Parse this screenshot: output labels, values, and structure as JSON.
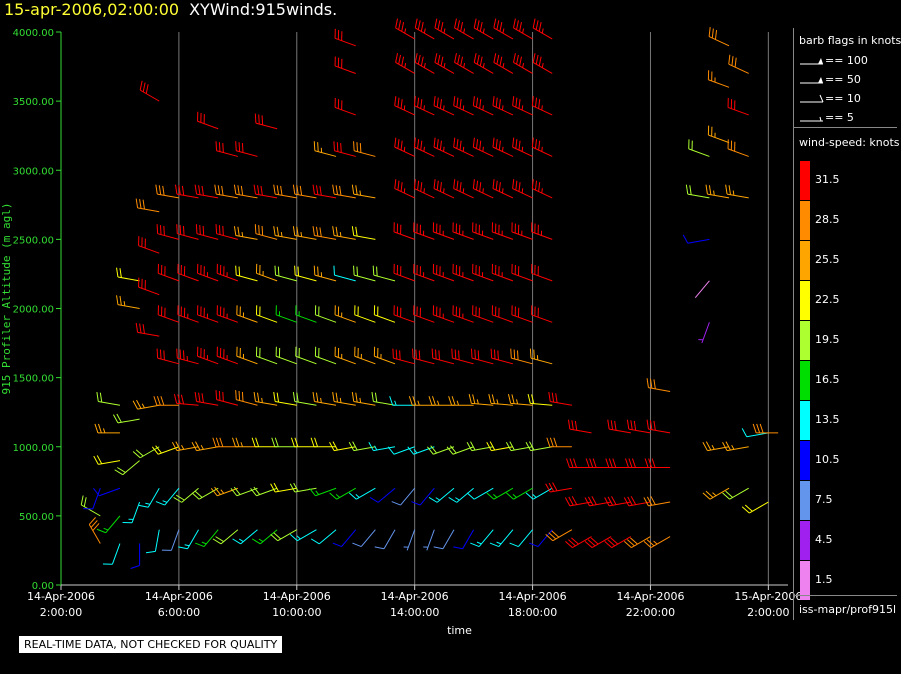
{
  "header": {
    "datetime": "15-apr-2006,02:00:00",
    "product": "XYWind:915winds."
  },
  "footer": {
    "qc_note": "REAL-TIME DATA, NOT CHECKED FOR QUALITY",
    "source": "iss-mapr/prof915l"
  },
  "legend": {
    "flags_title": "barb flags in knots",
    "flags": [
      {
        "kind": "pennant",
        "label": "== 100"
      },
      {
        "kind": "pennant",
        "label": "== 50"
      },
      {
        "kind": "full-barb",
        "label": "== 10"
      },
      {
        "kind": "half-barb",
        "label": "== 5"
      }
    ],
    "speed_title": "wind-speed: knots",
    "speed_bins": [
      {
        "label": "31.5",
        "color": "#ff0000"
      },
      {
        "label": "28.5",
        "color": "#ff8c00"
      },
      {
        "label": "25.5",
        "color": "#ffa500"
      },
      {
        "label": "22.5",
        "color": "#ffff00"
      },
      {
        "label": "19.5",
        "color": "#adff2f"
      },
      {
        "label": "16.5",
        "color": "#00dd00"
      },
      {
        "label": "13.5",
        "color": "#00ffff"
      },
      {
        "label": "10.5",
        "color": "#0000ff"
      },
      {
        "label": "7.5",
        "color": "#6495ed"
      },
      {
        "label": "4.5",
        "color": "#a020f0"
      },
      {
        "label": "1.5",
        "color": "#ee82ee"
      }
    ]
  },
  "chart_data": {
    "type": "scatter",
    "title": "XYWind:915winds.",
    "xlabel": "time",
    "ylabel": "915 Profiler Altitude (m agl)",
    "xlim": [
      "2006-04-14T02:00",
      "2006-04-15T02:40"
    ],
    "ylim": [
      0,
      4000
    ],
    "yticks": [
      "0.00",
      "500.00",
      "1000.00",
      "1500.00",
      "2000.00",
      "2500.00",
      "3000.00",
      "3500.00",
      "4000.00"
    ],
    "xticks": [
      {
        "date": "14-Apr-2006",
        "time": "2:00:00"
      },
      {
        "date": "14-Apr-2006",
        "time": "6:00:00"
      },
      {
        "date": "14-Apr-2006",
        "time": "10:00:00"
      },
      {
        "date": "14-Apr-2006",
        "time": "14:00:00"
      },
      {
        "date": "14-Apr-2006",
        "time": "18:00:00"
      },
      {
        "date": "14-Apr-2006",
        "time": "22:00:00"
      },
      {
        "date": "15-Apr-2006",
        "time": "2:00:00"
      }
    ],
    "grid": "vertical lines at each x tick",
    "columns": [
      {
        "time": "2006-04-14T03:20",
        "z": [
          300,
          500,
          700
        ],
        "speed": [
          28,
          20,
          10
        ],
        "dir": [
          330,
          300,
          200
        ]
      },
      {
        "time": "2006-04-14T04:00",
        "z": [
          300,
          500,
          700,
          900,
          1100,
          1300
        ],
        "speed": [
          12,
          16,
          10,
          22,
          24,
          20
        ],
        "dir": [
          200,
          220,
          250,
          260,
          270,
          280
        ]
      },
      {
        "time": "2006-04-14T04:40",
        "z": [
          300,
          600,
          900,
          1200,
          2000,
          2200
        ],
        "speed": [
          10,
          14,
          18,
          20,
          25,
          22
        ],
        "dir": [
          180,
          200,
          230,
          260,
          280,
          280
        ]
      },
      {
        "time": "2006-04-14T05:20",
        "z": [
          400,
          700,
          1000,
          1300,
          1800,
          2100,
          2400,
          2700,
          3500
        ],
        "speed": [
          12,
          14,
          20,
          25,
          30,
          31,
          30,
          29,
          31
        ],
        "dir": [
          190,
          210,
          240,
          260,
          280,
          290,
          290,
          280,
          300
        ]
      },
      {
        "time": "2006-04-14T06:00",
        "z": [
          400,
          700,
          1000,
          1300,
          1600,
          1900,
          2200,
          2500,
          2800
        ],
        "speed": [
          8,
          14,
          22,
          28,
          32,
          32,
          31,
          30,
          28
        ],
        "dir": [
          200,
          220,
          250,
          270,
          285,
          290,
          290,
          285,
          280
        ]
      },
      {
        "time": "2006-04-14T06:40",
        "z": [
          400,
          700,
          1000,
          1300,
          1600,
          1900,
          2200,
          2500,
          2800
        ],
        "speed": [
          14,
          18,
          24,
          30,
          33,
          33,
          32,
          31,
          30
        ],
        "dir": [
          210,
          230,
          260,
          275,
          285,
          290,
          290,
          285,
          280
        ]
      },
      {
        "time": "2006-04-14T07:20",
        "z": [
          400,
          700,
          1000,
          1300,
          1600,
          1900,
          2200,
          2500,
          2800,
          3300
        ],
        "speed": [
          16,
          20,
          26,
          30,
          33,
          34,
          33,
          32,
          31,
          30
        ],
        "dir": [
          220,
          240,
          260,
          280,
          290,
          290,
          290,
          285,
          280,
          290
        ]
      },
      {
        "time": "2006-04-14T08:00",
        "z": [
          400,
          700,
          1000,
          1300,
          1600,
          1900,
          2200,
          2500,
          2800,
          3100
        ],
        "speed": [
          18,
          24,
          28,
          32,
          34,
          35,
          33,
          30,
          28,
          30
        ],
        "dir": [
          230,
          250,
          270,
          285,
          290,
          290,
          290,
          285,
          280,
          285
        ]
      },
      {
        "time": "2006-04-14T08:40",
        "z": [
          400,
          700,
          1000,
          1300,
          1600,
          1900,
          2200,
          2500,
          2800,
          3100
        ],
        "speed": [
          14,
          20,
          24,
          28,
          26,
          24,
          22,
          26,
          28,
          30
        ],
        "dir": [
          230,
          250,
          270,
          285,
          290,
          290,
          285,
          280,
          280,
          285
        ]
      },
      {
        "time": "2006-04-14T09:20",
        "z": [
          400,
          700,
          1000,
          1300,
          1600,
          1900,
          2200,
          2500,
          2800,
          3300
        ],
        "speed": [
          16,
          20,
          22,
          24,
          20,
          22,
          26,
          28,
          30,
          31
        ],
        "dir": [
          230,
          250,
          270,
          280,
          290,
          290,
          290,
          285,
          280,
          285
        ]
      },
      {
        "time": "2006-04-14T10:00",
        "z": [
          400,
          700,
          1000,
          1300,
          1600,
          1900,
          2200,
          2500,
          2800
        ],
        "speed": [
          20,
          22,
          20,
          22,
          18,
          16,
          20,
          24,
          28
        ],
        "dir": [
          240,
          260,
          270,
          280,
          290,
          290,
          285,
          280,
          280
        ]
      },
      {
        "time": "2006-04-14T10:40",
        "z": [
          400,
          700,
          1000,
          1300,
          1600,
          1900,
          2200,
          2500,
          2800
        ],
        "speed": [
          14,
          18,
          22,
          20,
          18,
          16,
          22,
          26,
          28
        ],
        "dir": [
          240,
          260,
          270,
          280,
          290,
          290,
          285,
          280,
          280
        ]
      },
      {
        "time": "2006-04-14T11:20",
        "z": [
          400,
          700,
          1000,
          1300,
          1600,
          1900,
          2200,
          2500,
          2800,
          3100
        ],
        "speed": [
          12,
          16,
          22,
          24,
          20,
          18,
          24,
          28,
          30,
          24
        ],
        "dir": [
          230,
          250,
          270,
          280,
          290,
          290,
          285,
          280,
          280,
          285
        ]
      },
      {
        "time": "2006-04-14T12:00",
        "z": [
          400,
          700,
          1000,
          1300,
          1600,
          1900,
          2200,
          2500,
          2800,
          3100,
          3400,
          3700,
          3900
        ],
        "speed": [
          10,
          16,
          22,
          24,
          26,
          24,
          12,
          26,
          28,
          30,
          30,
          31,
          31
        ],
        "dir": [
          220,
          240,
          260,
          280,
          290,
          290,
          285,
          280,
          280,
          285,
          290,
          290,
          290
        ]
      },
      {
        "time": "2006-04-14T12:40",
        "z": [
          400,
          700,
          1000,
          1300,
          1600,
          1900,
          2200,
          2500,
          2800,
          3100
        ],
        "speed": [
          8,
          14,
          18,
          24,
          26,
          22,
          20,
          22,
          24,
          28
        ],
        "dir": [
          220,
          240,
          260,
          280,
          290,
          290,
          285,
          280,
          280,
          285
        ]
      },
      {
        "time": "2006-04-14T13:20",
        "z": [
          400,
          700,
          1000,
          1300,
          1600,
          1900,
          2200
        ],
        "speed": [
          8,
          10,
          14,
          18,
          24,
          22,
          20
        ],
        "dir": [
          210,
          230,
          260,
          280,
          290,
          290,
          285
        ]
      },
      {
        "time": "2006-04-14T14:00",
        "z": [
          400,
          700,
          1000,
          1300,
          1600,
          1900,
          2200,
          2500,
          2800,
          3100,
          3400,
          3700,
          3950
        ],
        "speed": [
          6,
          8,
          12,
          14,
          30,
          31,
          32,
          32,
          33,
          33,
          34,
          34,
          34
        ],
        "dir": [
          200,
          220,
          250,
          270,
          285,
          290,
          290,
          290,
          295,
          295,
          295,
          300,
          300
        ]
      },
      {
        "time": "2006-04-14T14:40",
        "z": [
          400,
          700,
          1000,
          1300,
          1600,
          1900,
          2200,
          2500,
          2800,
          3100,
          3400,
          3700,
          3950
        ],
        "speed": [
          6,
          10,
          14,
          24,
          30,
          32,
          33,
          33,
          34,
          34,
          34,
          35,
          35
        ],
        "dir": [
          200,
          220,
          250,
          270,
          285,
          290,
          290,
          290,
          295,
          295,
          295,
          300,
          300
        ]
      },
      {
        "time": "2006-04-14T15:20",
        "z": [
          400,
          700,
          1000,
          1300,
          1600,
          1900,
          2200,
          2500,
          2800,
          3100,
          3400,
          3700,
          3950
        ],
        "speed": [
          8,
          14,
          18,
          26,
          30,
          33,
          34,
          34,
          34,
          34,
          35,
          35,
          35
        ],
        "dir": [
          210,
          230,
          250,
          270,
          285,
          290,
          290,
          290,
          295,
          295,
          295,
          300,
          300
        ]
      },
      {
        "time": "2006-04-14T16:00",
        "z": [
          400,
          700,
          1000,
          1300,
          1600,
          1900,
          2200,
          2500,
          2800,
          3100,
          3400,
          3700,
          3950
        ],
        "speed": [
          10,
          14,
          20,
          26,
          30,
          33,
          34,
          34,
          34,
          34,
          35,
          35,
          35
        ],
        "dir": [
          210,
          230,
          250,
          270,
          285,
          290,
          290,
          290,
          295,
          295,
          295,
          300,
          300
        ]
      },
      {
        "time": "2006-04-14T16:40",
        "z": [
          400,
          700,
          1000,
          1300,
          1600,
          1900,
          2200,
          2500,
          2800,
          3100,
          3400,
          3700,
          3950
        ],
        "speed": [
          14,
          12,
          18,
          24,
          30,
          32,
          33,
          34,
          34,
          34,
          35,
          35,
          35
        ],
        "dir": [
          220,
          240,
          260,
          275,
          285,
          290,
          290,
          290,
          295,
          295,
          295,
          300,
          300
        ]
      },
      {
        "time": "2006-04-14T17:20",
        "z": [
          400,
          700,
          1000,
          1300,
          1600,
          1900,
          2200,
          2500,
          2800,
          3100,
          3400,
          3700,
          3950
        ],
        "speed": [
          14,
          16,
          22,
          26,
          30,
          32,
          33,
          34,
          34,
          34,
          35,
          35,
          35
        ],
        "dir": [
          220,
          240,
          260,
          275,
          285,
          290,
          290,
          290,
          295,
          295,
          295,
          300,
          300
        ]
      },
      {
        "time": "2006-04-14T18:00",
        "z": [
          400,
          700,
          1000,
          1300,
          1600,
          1900,
          2200,
          2500,
          2800,
          3100,
          3400,
          3700,
          3950
        ],
        "speed": [
          12,
          16,
          20,
          26,
          28,
          30,
          32,
          33,
          34,
          34,
          35,
          35,
          35
        ],
        "dir": [
          220,
          240,
          260,
          275,
          285,
          290,
          290,
          290,
          295,
          295,
          295,
          300,
          300
        ]
      },
      {
        "time": "2006-04-14T18:40",
        "z": [
          400,
          700,
          1000,
          1300,
          1600,
          1900,
          2200,
          2500,
          2800,
          3100,
          3400,
          3700,
          3950
        ],
        "speed": [
          10,
          14,
          18,
          22,
          26,
          30,
          32,
          33,
          33,
          34,
          34,
          35,
          35
        ],
        "dir": [
          220,
          240,
          260,
          275,
          285,
          290,
          290,
          290,
          295,
          295,
          295,
          300,
          300
        ]
      },
      {
        "time": "2006-04-14T19:20",
        "z": [
          400,
          700,
          1000,
          1300
        ],
        "speed": [
          28,
          30,
          29,
          30
        ],
        "dir": [
          240,
          260,
          270,
          280
        ]
      },
      {
        "time": "2006-04-14T20:00",
        "z": [
          350,
          600,
          850,
          1100
        ],
        "speed": [
          30,
          31,
          31,
          30
        ],
        "dir": [
          240,
          260,
          270,
          280
        ]
      },
      {
        "time": "2006-04-14T20:40",
        "z": [
          350,
          600,
          850
        ],
        "speed": [
          30,
          31,
          31
        ],
        "dir": [
          240,
          260,
          270
        ]
      },
      {
        "time": "2006-04-14T21:20",
        "z": [
          350,
          600,
          850,
          1100
        ],
        "speed": [
          30,
          31,
          32,
          31
        ],
        "dir": [
          240,
          260,
          270,
          280
        ]
      },
      {
        "time": "2006-04-14T22:00",
        "z": [
          350,
          600,
          850,
          1100
        ],
        "speed": [
          28,
          30,
          31,
          32
        ],
        "dir": [
          240,
          260,
          270,
          280
        ]
      },
      {
        "time": "2006-04-14T22:40",
        "z": [
          350,
          600,
          850,
          1100,
          1400
        ],
        "speed": [
          27,
          28,
          30,
          31,
          28
        ],
        "dir": [
          240,
          260,
          270,
          280,
          280
        ]
      },
      {
        "time": "2006-04-15T00:00",
        "z": [
          1900,
          2200,
          2500,
          2800,
          3100
        ],
        "speed": [
          4,
          2,
          10,
          18,
          20
        ],
        "dir": [
          200,
          220,
          260,
          280,
          290
        ]
      },
      {
        "time": "2006-04-15T00:40",
        "z": [
          700,
          1000,
          2800,
          3200,
          3600,
          3900
        ],
        "speed": [
          24,
          24,
          25,
          26,
          27,
          28
        ],
        "dir": [
          240,
          260,
          280,
          290,
          290,
          295
        ]
      },
      {
        "time": "2006-04-15T01:20",
        "z": [
          700,
          1000,
          2800,
          3100,
          3400,
          3700
        ],
        "speed": [
          20,
          24,
          26,
          28,
          30,
          28
        ],
        "dir": [
          240,
          260,
          280,
          290,
          290,
          295
        ]
      },
      {
        "time": "2006-04-15T02:00",
        "z": [
          600,
          1100
        ],
        "speed": [
          22,
          12
        ],
        "dir": [
          240,
          260
        ]
      },
      {
        "time": "2006-04-15T02:20",
        "z": [
          1100
        ],
        "speed": [
          28
        ],
        "dir": [
          270
        ]
      }
    ]
  }
}
